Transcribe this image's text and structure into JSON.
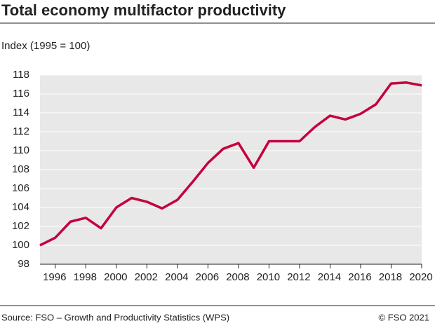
{
  "chart_data": {
    "type": "line",
    "title": "Total economy multifactor productivity",
    "subtitle": "Index (1995 = 100)",
    "x": [
      1995,
      1996,
      1997,
      1998,
      1999,
      2000,
      2001,
      2002,
      2003,
      2004,
      2005,
      2006,
      2007,
      2008,
      2009,
      2010,
      2011,
      2012,
      2013,
      2014,
      2015,
      2016,
      2017,
      2018,
      2019,
      2020
    ],
    "series": [
      {
        "name": "Multifactor productivity",
        "color": "#c5003e",
        "values": [
          100,
          100.8,
          102.5,
          102.9,
          101.8,
          104,
          105,
          104.6,
          103.9,
          104.8,
          106.7,
          108.7,
          110.2,
          110.8,
          108.2,
          111,
          111,
          111,
          112.5,
          113.7,
          113.3,
          113.9,
          114.9,
          117.1,
          117.2,
          116.9
        ]
      }
    ],
    "xlim": [
      1995,
      2020
    ],
    "xticks": [
      1996,
      1998,
      2000,
      2002,
      2004,
      2006,
      2008,
      2010,
      2012,
      2014,
      2016,
      2018,
      2020
    ],
    "ylim": [
      98,
      118
    ],
    "yticks": [
      98,
      100,
      102,
      104,
      106,
      108,
      110,
      112,
      114,
      116,
      118
    ],
    "grid": true,
    "source": "Source: FSO – Growth and Productivity Statistics (WPS)",
    "credit": "© FSO 2021"
  }
}
